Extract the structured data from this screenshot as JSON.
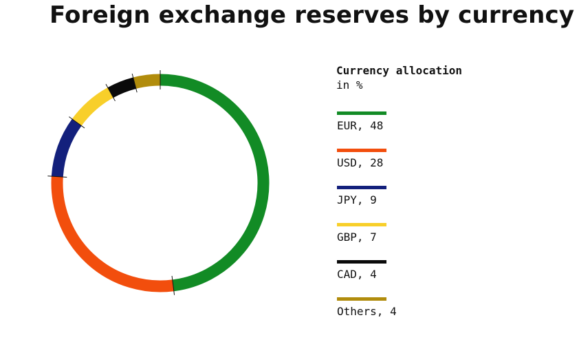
{
  "title": "Foreign exchange reserves by currency",
  "legend": {
    "title": "Currency allocation",
    "subtitle": "in %",
    "items": [
      {
        "label": "EUR, 48",
        "color": "#128b25"
      },
      {
        "label": "USD, 28",
        "color": "#f24e0d"
      },
      {
        "label": "JPY, 9",
        "color": "#13207c"
      },
      {
        "label": "GBP, 7",
        "color": "#f8cf2a"
      },
      {
        "label": "CAD, 4",
        "color": "#0a0a0a"
      },
      {
        "label": "Others, 4",
        "color": "#b18c0c"
      }
    ]
  },
  "chart_data": {
    "type": "pie",
    "style": "ring",
    "title": "Foreign exchange reserves by currency",
    "unit": "%",
    "categories": [
      "EUR",
      "USD",
      "JPY",
      "GBP",
      "CAD",
      "Others"
    ],
    "values": [
      48,
      28,
      9,
      7,
      4,
      4
    ],
    "colors": [
      "#128b25",
      "#f24e0d",
      "#13207c",
      "#f8cf2a",
      "#0a0a0a",
      "#b18c0c"
    ],
    "start": "top",
    "direction": "clockwise",
    "legend_position": "right"
  }
}
